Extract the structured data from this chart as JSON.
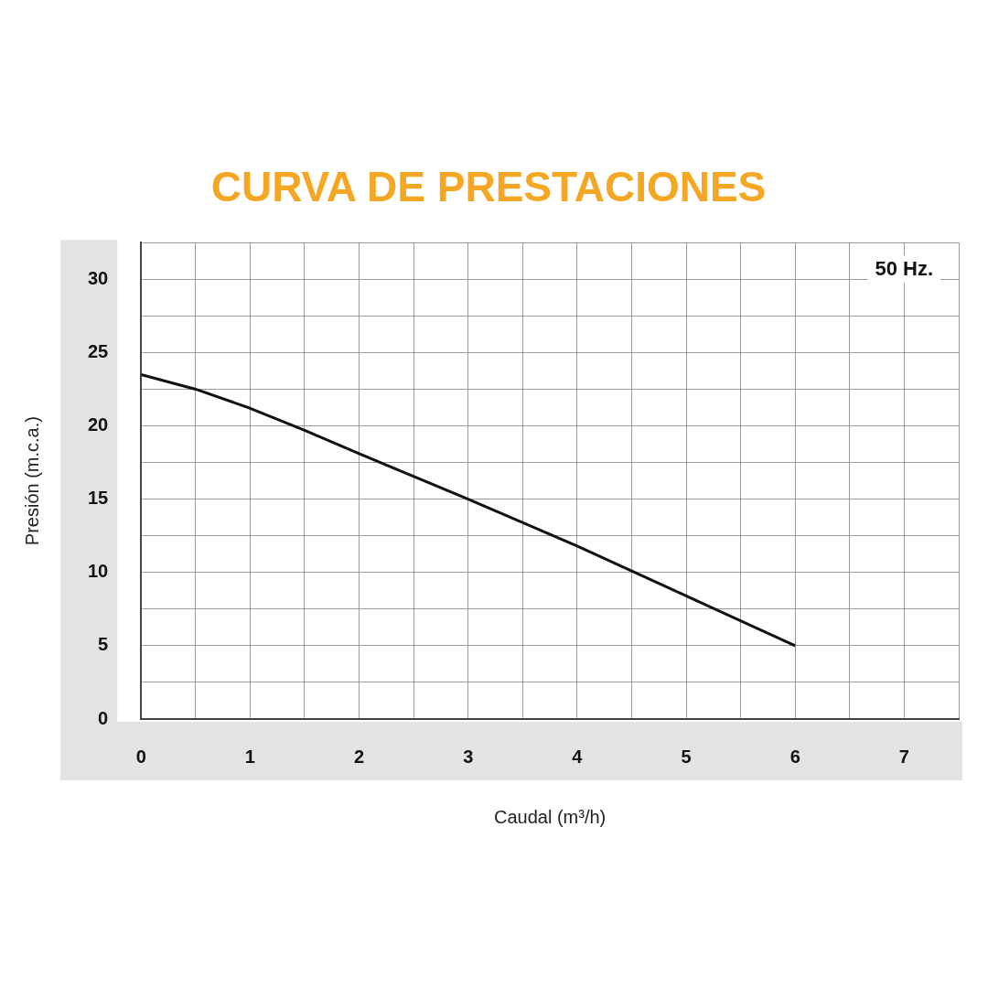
{
  "chart_data": {
    "type": "line",
    "title": "CURVA DE PRESTACIONES",
    "xlabel": "Caudal (m³/h)",
    "ylabel": "Presión (m.c.a.)",
    "annotations": [
      "50 Hz."
    ],
    "x": [
      0,
      0.5,
      1,
      1.5,
      2,
      3,
      4,
      5,
      6
    ],
    "series": [
      {
        "color": "#111111",
        "values": [
          23.5,
          22.5,
          21.2,
          19.7,
          18.1,
          15,
          11.8,
          8.4,
          5
        ]
      }
    ],
    "xlim": [
      0,
      7.5
    ],
    "xticks": [
      0,
      {
        "value": 0.5,
        "label": null
      },
      1,
      {
        "value": 1.5,
        "label": null
      },
      2,
      {
        "value": 2.5,
        "label": null
      },
      3,
      {
        "value": 3.5,
        "label": null
      },
      4,
      {
        "value": 4.5,
        "label": null
      },
      5,
      {
        "value": 5.5,
        "label": null
      },
      6,
      {
        "value": 6.5,
        "label": null
      },
      7,
      {
        "value": 7.5,
        "label": null
      }
    ],
    "ylim": [
      0,
      32.5
    ],
    "yticks": [
      0,
      {
        "value": 2.5,
        "label": null
      },
      5,
      {
        "value": 7.5,
        "label": null
      },
      10,
      {
        "value": 12.5,
        "label": null
      },
      15,
      {
        "value": 17.5,
        "label": null
      },
      20,
      {
        "value": 22.5,
        "label": null
      },
      25,
      {
        "value": 27.5,
        "label": null
      },
      30,
      {
        "value": 32.5,
        "label": null
      }
    ],
    "grid": true,
    "legend": false,
    "marker": "none",
    "line_style": "solid"
  }
}
